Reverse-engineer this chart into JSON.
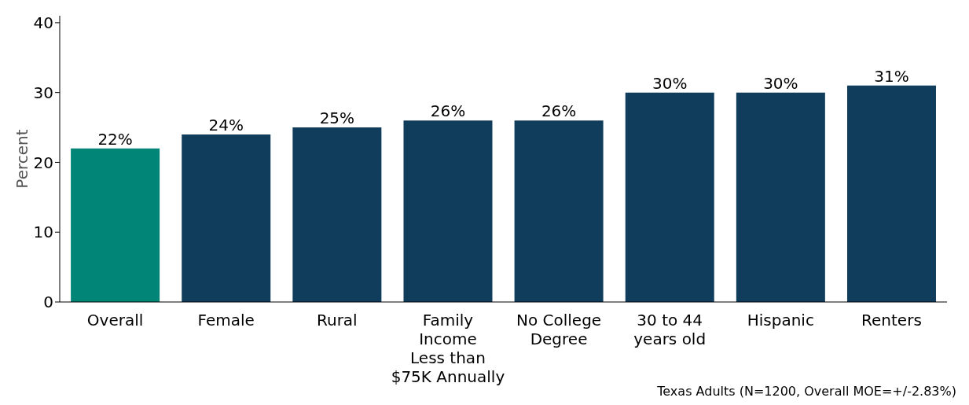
{
  "chart_data": {
    "type": "bar",
    "ylabel": "Percent",
    "categories": [
      "Overall",
      "Female",
      "Rural",
      "Family\nIncome\nLess than\n$75K Annually",
      "No College\nDegree",
      "30 to 44\nyears old",
      "Hispanic",
      "Renters"
    ],
    "values": [
      22,
      24,
      25,
      26,
      26,
      30,
      30,
      31
    ],
    "colors": [
      "#008577",
      "#103d5c",
      "#103d5c",
      "#103d5c",
      "#103d5c",
      "#103d5c",
      "#103d5c",
      "#103d5c"
    ],
    "value_labels": [
      "22%",
      "24%",
      "25%",
      "26%",
      "26%",
      "30%",
      "30%",
      "31%"
    ],
    "ylim": [
      0,
      41
    ],
    "yticks": [
      0,
      10,
      20,
      30,
      40
    ],
    "grid": false,
    "legend": false,
    "annotations": [
      "Texas Adults (N=1200, Overall MOE=+/-2.83%)"
    ]
  }
}
